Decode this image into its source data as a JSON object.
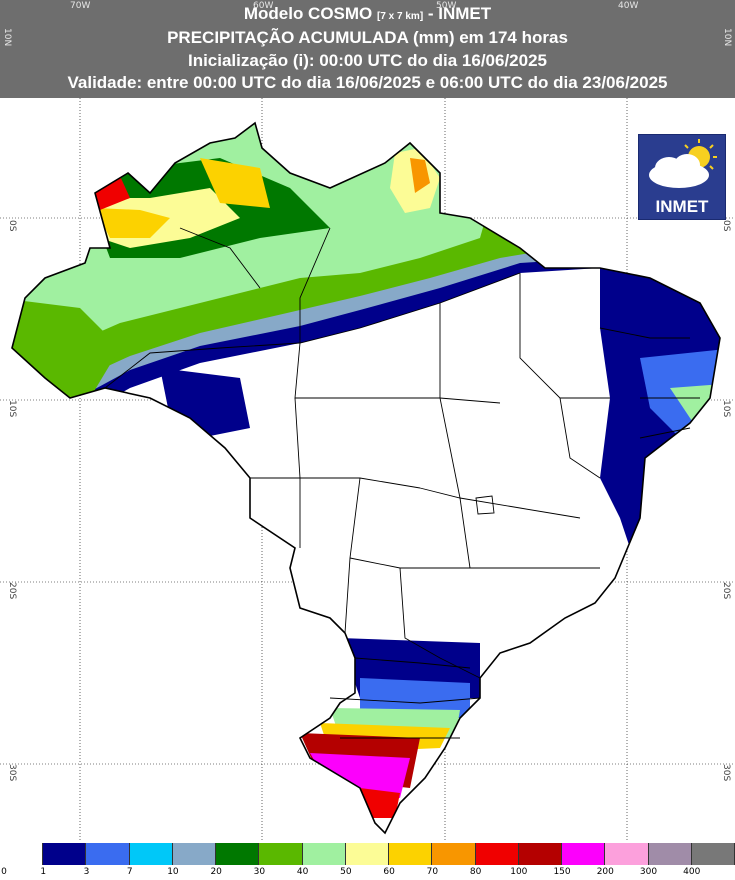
{
  "header": {
    "line1_a": "Modelo COSMO ",
    "line1_small": "[7 x 7 km]",
    "line1_b": " - INMET",
    "line2": "PRECIPITAÇÃO ACUMULADA (mm) em 174 horas",
    "line3": "Inicialização (i): 00:00 UTC do dia 16/06/2025",
    "line4": "Validade: entre 00:00 UTC do dia 16/06/2025 e 06:00 UTC do dia 23/06/2025"
  },
  "axes": {
    "lon_ticks": [
      "70W",
      "60W",
      "50W",
      "40W"
    ],
    "lat_ticks_left": [
      "10N",
      "0S",
      "10S",
      "20S",
      "30S"
    ],
    "lat_ticks_right": [
      "10N",
      "0S",
      "10S",
      "20S",
      "30S"
    ]
  },
  "logo": {
    "text": "INMET",
    "icon": "sun-cloud-icon"
  },
  "legend": {
    "colors": [
      "#ffffff",
      "#00008b",
      "#3a6cf0",
      "#00c8f8",
      "#87a9c8",
      "#007800",
      "#5ab800",
      "#a0f0a0",
      "#fcfc96",
      "#fcd200",
      "#f89600",
      "#f00000",
      "#b40000",
      "#fc00fc",
      "#fca0dc",
      "#a08ca8",
      "#787878"
    ],
    "labels": [
      "0",
      "1",
      "3",
      "7",
      "10",
      "20",
      "30",
      "40",
      "50",
      "60",
      "70",
      "80",
      "100",
      "150",
      "200",
      "300",
      "400"
    ]
  },
  "colors": {
    "header_bg": "#6e6e6e",
    "map_bg": "#ffffff",
    "border_line": "#000000"
  }
}
